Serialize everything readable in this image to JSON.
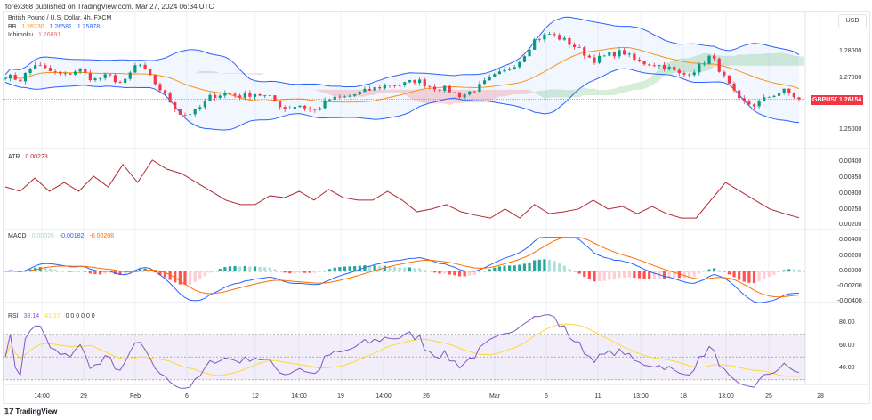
{
  "header": {
    "published": "forex368 published on TradingView.com, Mar 27, 2024 06:34 UTC"
  },
  "symbol": {
    "title": "British Pound / U.S. Dollar, 4h, FXCM",
    "ticker": "GBPUSD",
    "last_price": "1.26154",
    "currency": "USD"
  },
  "legends": {
    "bb": {
      "label": "BB",
      "basis": "1.26230",
      "upper": "1.26581",
      "lower": "1.25878"
    },
    "ichimoku": {
      "label": "Ichimoku",
      "value": "1.26891"
    },
    "atr": {
      "label": "ATR",
      "value": "0.00223"
    },
    "macd": {
      "label": "MACD",
      "hist": "0.00026",
      "macd": "-0.00182",
      "signal": "-0.00208"
    },
    "rsi": {
      "label": "RSI",
      "value": "38.14",
      "ma": "41.27",
      "extra": "0 0 0 0 0 0"
    }
  },
  "colors": {
    "up": "#089981",
    "down": "#f23645",
    "bb_basis": "#f7931a",
    "bb_band": "#2962ff",
    "atr": "#b22833",
    "macd": "#2962ff",
    "signal": "#ff6d00",
    "rsi": "#7e57c2",
    "rsi_ma": "#fdd835",
    "ichimoku_red": "#f7a9a9",
    "ichimoku_green": "#a5d6a7"
  },
  "footer": {
    "brand": "TradingView"
  },
  "chart_data": [
    {
      "type": "candlestick",
      "title": "British Pound / U.S. Dollar, 4h, FXCM",
      "price_axis_ticks": [
        "1.28000",
        "1.27000",
        "1.25000"
      ],
      "closes_approx": [
        1.2707,
        1.269,
        1.2752,
        1.2724,
        1.2707,
        1.2731,
        1.269,
        1.2707,
        1.2672,
        1.2759,
        1.269,
        1.2621,
        1.2552,
        1.2569,
        1.2628,
        1.2638,
        1.2628,
        1.2638,
        1.2621,
        1.2579,
        1.2593,
        1.2569,
        1.2614,
        1.2621,
        1.2638,
        1.2655,
        1.2672,
        1.2672,
        1.269,
        1.2662,
        1.2655,
        1.2628,
        1.2655,
        1.2697,
        1.2724,
        1.2766,
        1.2845,
        1.2869,
        1.2845,
        1.281,
        1.2766,
        1.2786,
        1.28,
        1.2759,
        1.2752,
        1.2741,
        1.2707,
        1.2731,
        1.2786,
        1.269,
        1.2603,
        1.2593,
        1.2628,
        1.2648,
        1.2615
      ]
    },
    {
      "type": "line",
      "title": "ATR",
      "ylim": [
        0.002,
        0.0041
      ],
      "ticks": [
        "0.00400",
        "0.00350",
        "0.00300",
        "0.00250",
        "0.00200"
      ],
      "values": [
        0.00321,
        0.00307,
        0.00349,
        0.00307,
        0.00335,
        0.00307,
        0.00355,
        0.00321,
        0.00392,
        0.00335,
        0.00406,
        0.00377,
        0.00363,
        0.00335,
        0.00307,
        0.00279,
        0.00265,
        0.00265,
        0.00293,
        0.00287,
        0.00307,
        0.00279,
        0.00313,
        0.00287,
        0.00279,
        0.00279,
        0.00307,
        0.00279,
        0.00242,
        0.00251,
        0.00265,
        0.00242,
        0.00231,
        0.00222,
        0.00251,
        0.00222,
        0.00265,
        0.00236,
        0.00242,
        0.00251,
        0.00279,
        0.00251,
        0.00259,
        0.00236,
        0.00259,
        0.00236,
        0.00222,
        0.00222,
        0.00279,
        0.00335,
        0.00307,
        0.00279,
        0.00251,
        0.00236,
        0.00223
      ]
    },
    {
      "type": "bar+line",
      "title": "MACD",
      "ticks": [
        "0.00400",
        "0.00200",
        "0.00000",
        "-0.00200",
        "-0.00400"
      ]
    },
    {
      "type": "line",
      "title": "RSI",
      "ticks": [
        "80.00",
        "60.00",
        "40.00"
      ],
      "bands": [
        70,
        50,
        30
      ]
    }
  ],
  "time_axis": [
    "14:00",
    "29",
    "Feb",
    "6",
    "12",
    "14:00",
    "19",
    "14:00",
    "26",
    "Mar",
    "6",
    "11",
    "13:00",
    "18",
    "13:00",
    "25",
    "28"
  ]
}
